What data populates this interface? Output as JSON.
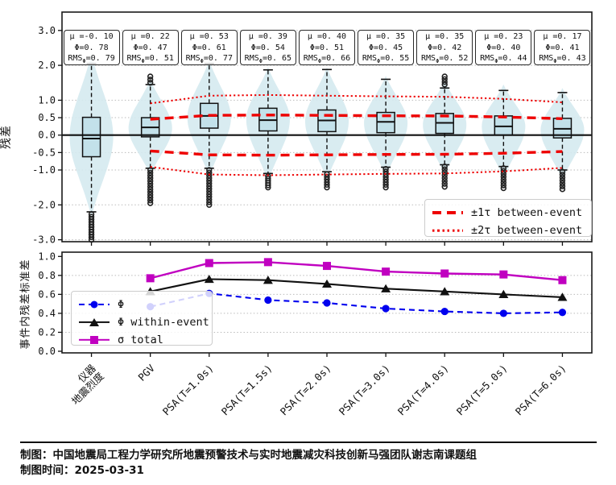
{
  "colors": {
    "red": "#ee0000",
    "blue": "#0000ee",
    "magenta": "#c000c0",
    "black": "#111111",
    "violin_fill": "#d5eaf0",
    "box_fill": "#c3e1ea",
    "grid": "#bbbbbb",
    "frame": "#1a1a1a"
  },
  "categories": [
    "仪器\n地震烈度",
    "PGV",
    "PSA(T=1.0s)",
    "PSA(T=1.5s)",
    "PSA(T=2.0s)",
    "PSA(T=3.0s)",
    "PSA(T=4.0s)",
    "PSA(T=5.0s)",
    "PSA(T=6.0s)"
  ],
  "chart_data": [
    {
      "type": "violin-box",
      "ylabel": "残差",
      "yticks": [
        3.0,
        2.0,
        1.0,
        0.5,
        0.0,
        -0.5,
        -1.0,
        -2.0,
        -3.0
      ],
      "ytick_labels": [
        "3.0",
        "2.0",
        "1.0",
        "0.5",
        "0.0",
        "-0.5",
        "-1.0",
        "-2.0",
        "-3.0"
      ],
      "ylim": [
        -3.1,
        3.55
      ],
      "grid": "dotted horizontal",
      "zero_line": 0.0,
      "categories": [
        "仪器地震烈度",
        "PGV",
        "PSA(T=1.0s)",
        "PSA(T=1.5s)",
        "PSA(T=2.0s)",
        "PSA(T=3.0s)",
        "PSA(T=4.0s)",
        "PSA(T=5.0s)",
        "PSA(T=6.0s)"
      ],
      "stats": [
        {
          "median": -0.1,
          "q1": -0.62,
          "q3": 0.51,
          "whislo": -2.2,
          "whishi": 2.05,
          "out_lo": [
            -2.27,
            -3.0,
            11
          ],
          "out_hi": null,
          "violin": [
            -2.35,
            2.35,
            -0.05
          ]
        },
        {
          "median": 0.22,
          "q1": -0.05,
          "q3": 0.5,
          "whislo": -0.95,
          "whishi": 1.45,
          "out_lo": [
            -1.0,
            -1.95,
            13
          ],
          "out_hi": [
            1.5,
            1.68,
            3
          ],
          "violin": [
            -1.15,
            1.6,
            0.2
          ]
        },
        {
          "median": 0.55,
          "q1": 0.2,
          "q3": 0.91,
          "whislo": -0.95,
          "whishi": 2.05,
          "out_lo": [
            -1.0,
            -2.0,
            14
          ],
          "out_hi": null,
          "violin": [
            -1.2,
            2.15,
            0.5
          ]
        },
        {
          "median": 0.43,
          "q1": 0.12,
          "q3": 0.77,
          "whislo": -1.1,
          "whishi": 1.87,
          "out_lo": [
            -1.18,
            -1.5,
            6
          ],
          "out_hi": null,
          "violin": [
            -1.35,
            1.95,
            0.45
          ]
        },
        {
          "median": 0.42,
          "q1": 0.1,
          "q3": 0.72,
          "whislo": -1.05,
          "whishi": 1.88,
          "out_lo": [
            -1.12,
            -1.5,
            6
          ],
          "out_hi": null,
          "violin": [
            -1.3,
            1.95,
            0.4
          ]
        },
        {
          "median": 0.38,
          "q1": 0.07,
          "q3": 0.65,
          "whislo": -0.92,
          "whishi": 1.6,
          "out_lo": [
            -0.97,
            -1.5,
            8
          ],
          "out_hi": null,
          "violin": [
            -1.2,
            1.7,
            0.35
          ]
        },
        {
          "median": 0.35,
          "q1": 0.05,
          "q3": 0.62,
          "whislo": -0.85,
          "whishi": 1.35,
          "out_lo": [
            -0.9,
            -1.48,
            8
          ],
          "out_hi": [
            1.45,
            1.68,
            4
          ],
          "violin": [
            -1.15,
            1.55,
            0.3
          ]
        },
        {
          "median": 0.25,
          "q1": 0.0,
          "q3": 0.55,
          "whislo": -0.9,
          "whishi": 1.28,
          "out_lo": [
            -0.95,
            -1.52,
            8
          ],
          "out_hi": null,
          "violin": [
            -1.25,
            1.45,
            0.25
          ]
        },
        {
          "median": 0.18,
          "q1": -0.08,
          "q3": 0.48,
          "whislo": -1.0,
          "whishi": 1.22,
          "out_lo": [
            -1.05,
            -1.55,
            7
          ],
          "out_hi": null,
          "violin": [
            -1.3,
            1.35,
            0.15
          ]
        }
      ],
      "annotations": [
        {
          "mu": -0.1,
          "phi": 0.78,
          "rms_phi": 0.79,
          "mu_text": "μ =-0. 10",
          "phi_text": "Φ=0. 78",
          "rms_prefix": "RMS",
          "rms_sub": "Φ",
          "rms_text": "=0. 79"
        },
        {
          "mu": 0.22,
          "phi": 0.47,
          "rms_phi": 0.51,
          "mu_text": "μ =0. 22",
          "phi_text": "Φ=0. 47",
          "rms_prefix": "RMS",
          "rms_sub": "Φ",
          "rms_text": "=0. 51"
        },
        {
          "mu": 0.53,
          "phi": 0.61,
          "rms_phi": 0.77,
          "mu_text": "μ =0. 53",
          "phi_text": "Φ=0. 61",
          "rms_prefix": "RMS",
          "rms_sub": "Φ",
          "rms_text": "=0. 77"
        },
        {
          "mu": 0.39,
          "phi": 0.54,
          "rms_phi": 0.65,
          "mu_text": "μ =0. 39",
          "phi_text": "Φ=0. 54",
          "rms_prefix": "RMS",
          "rms_sub": "Φ",
          "rms_text": "=0. 65"
        },
        {
          "mu": 0.4,
          "phi": 0.51,
          "rms_phi": 0.66,
          "mu_text": "μ =0. 40",
          "phi_text": "Φ=0. 51",
          "rms_prefix": "RMS",
          "rms_sub": "Φ",
          "rms_text": "=0. 66"
        },
        {
          "mu": 0.35,
          "phi": 0.45,
          "rms_phi": 0.55,
          "mu_text": "μ =0. 35",
          "phi_text": "Φ=0. 45",
          "rms_prefix": "RMS",
          "rms_sub": "Φ",
          "rms_text": "=0. 55"
        },
        {
          "mu": 0.35,
          "phi": 0.42,
          "rms_phi": 0.52,
          "mu_text": "μ =0. 35",
          "phi_text": "Φ=0. 42",
          "rms_prefix": "RMS",
          "rms_sub": "Φ",
          "rms_text": "=0. 52"
        },
        {
          "mu": 0.23,
          "phi": 0.4,
          "rms_phi": 0.44,
          "mu_text": "μ =0. 23",
          "phi_text": "Φ=0. 40",
          "rms_prefix": "RMS",
          "rms_sub": "Φ",
          "rms_text": "=0. 44"
        },
        {
          "mu": 0.17,
          "phi": 0.41,
          "rms_phi": 0.43,
          "mu_text": "μ =0. 17",
          "phi_text": "Φ=0. 41",
          "rms_prefix": "RMS",
          "rms_sub": "Φ",
          "rms_text": "=0. 43"
        }
      ],
      "tau_between_event": [
        null,
        0.455,
        0.565,
        0.575,
        0.565,
        0.555,
        0.55,
        0.52,
        0.47
      ],
      "legend": [
        {
          "label": "±1τ between-event",
          "style": "red dashed"
        },
        {
          "label": "±2τ between-event",
          "style": "red dotted"
        }
      ],
      "legend_position": "lower right"
    },
    {
      "type": "line",
      "ylabel": "事件内残差标准差",
      "yticks": [
        1.0,
        0.8,
        0.6,
        0.4,
        0.2,
        0.0
      ],
      "ytick_labels": [
        "1.0",
        "0.8",
        "0.6",
        "0.4",
        "0.2",
        "0.0"
      ],
      "ylim": [
        -0.02,
        1.04
      ],
      "grid": "dotted horizontal",
      "categories": [
        "仪器地震烈度",
        "PGV",
        "PSA(T=1.0s)",
        "PSA(T=1.5s)",
        "PSA(T=2.0s)",
        "PSA(T=3.0s)",
        "PSA(T=4.0s)",
        "PSA(T=5.0s)",
        "PSA(T=6.0s)"
      ],
      "series": [
        {
          "name": "Φ",
          "color": "#0000ee",
          "line": "dashed",
          "marker": "circle",
          "values": [
            null,
            0.47,
            0.61,
            0.54,
            0.51,
            0.45,
            0.42,
            0.4,
            0.41
          ]
        },
        {
          "name": "Φ within-event",
          "color": "#111111",
          "line": "solid",
          "marker": "triangle",
          "values": [
            null,
            0.63,
            0.76,
            0.75,
            0.71,
            0.66,
            0.63,
            0.6,
            0.57
          ]
        },
        {
          "name": "σ total",
          "color": "#c000c0",
          "line": "solid",
          "marker": "square",
          "values": [
            null,
            0.77,
            0.93,
            0.94,
            0.9,
            0.84,
            0.82,
            0.81,
            0.75
          ]
        }
      ],
      "legend_position": "lower left"
    }
  ],
  "footer": {
    "line1": "制图：中国地震局工程力学研究所地震预警技术与实时地震减灾科技创新马强团队谢志南课题组",
    "line2": "制图时间：2025-03-31"
  }
}
